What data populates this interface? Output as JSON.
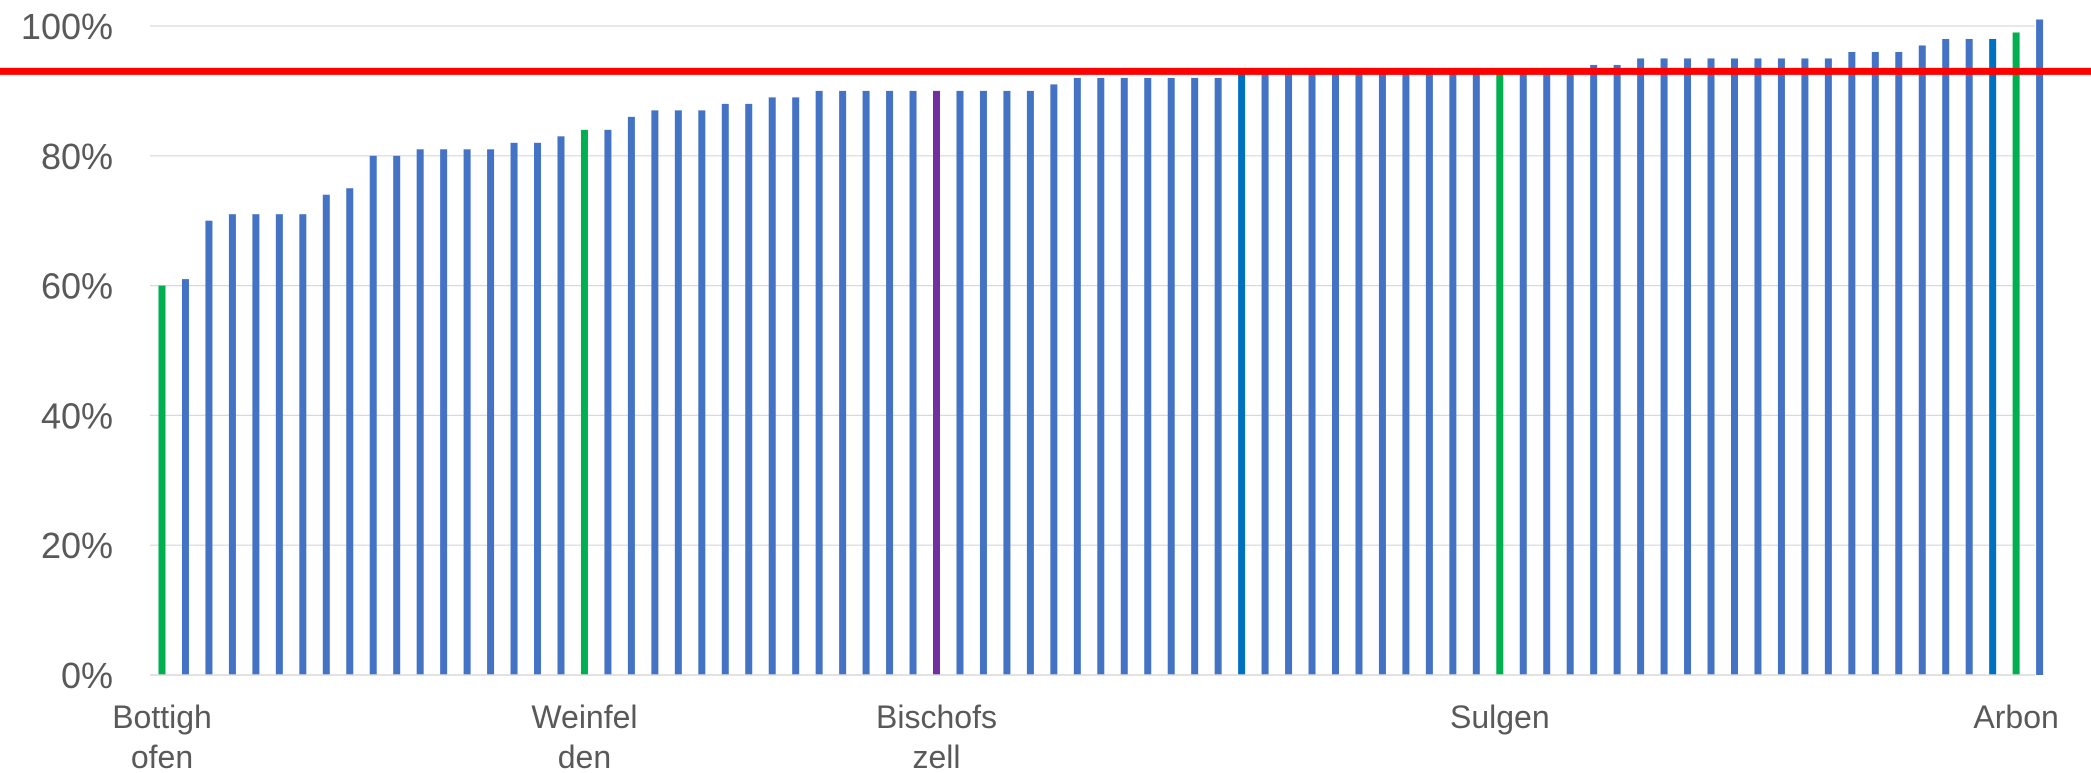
{
  "colors": {
    "default_bar": "#4472c4",
    "highlight_green": "#00b050",
    "highlight_purple": "#7030a0",
    "highlight_darkblue": "#0070c0",
    "reference_line": "#ff0000",
    "grid": "#d9d9d9",
    "text": "#595959"
  },
  "chart_data": {
    "type": "bar",
    "title": "",
    "xlabel": "",
    "ylabel": "",
    "ylim": [
      0,
      100
    ],
    "y_ticks": [
      "0%",
      "20%",
      "40%",
      "60%",
      "80%",
      "100%"
    ],
    "y_tick_values": [
      0,
      20,
      40,
      60,
      80,
      100
    ],
    "grid": "horizontal",
    "reference_line": 93,
    "labeled_categories": [
      {
        "index": 0,
        "label_lines": [
          "Bottigh",
          "ofen"
        ]
      },
      {
        "index": 18,
        "label_lines": [
          "Weinfel",
          "den"
        ]
      },
      {
        "index": 33,
        "label_lines": [
          "Bischofs",
          "zell"
        ]
      },
      {
        "index": 57,
        "label_lines": [
          "Sulgen"
        ]
      },
      {
        "index": 79,
        "label_lines": [
          "Arbon"
        ]
      }
    ],
    "values": [
      60,
      61,
      70,
      71,
      71,
      71,
      71,
      74,
      75,
      80,
      80,
      81,
      81,
      81,
      81,
      82,
      82,
      83,
      84,
      84,
      86,
      87,
      87,
      87,
      88,
      88,
      89,
      89,
      90,
      90,
      90,
      90,
      90,
      90,
      90,
      90,
      90,
      90,
      91,
      92,
      92,
      92,
      92,
      92,
      92,
      92,
      93,
      93,
      93,
      93,
      93,
      93,
      93,
      93,
      93,
      93,
      93,
      93,
      93,
      93,
      93,
      94,
      94,
      95,
      95,
      95,
      95,
      95,
      95,
      95,
      95,
      95,
      96,
      96,
      96,
      97,
      98,
      98,
      98,
      99,
      101
    ],
    "highlights": [
      {
        "index": 0,
        "color": "green"
      },
      {
        "index": 18,
        "color": "green"
      },
      {
        "index": 33,
        "color": "purple"
      },
      {
        "index": 46,
        "color": "darkblue"
      },
      {
        "index": 57,
        "color": "green"
      },
      {
        "index": 78,
        "color": "darkblue"
      },
      {
        "index": 79,
        "color": "green"
      }
    ]
  }
}
